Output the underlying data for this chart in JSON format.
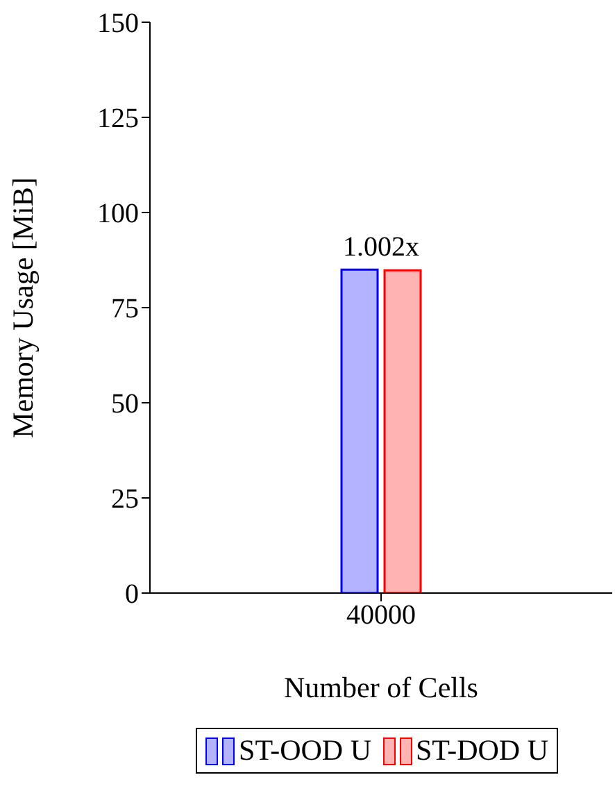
{
  "chart_data": {
    "type": "bar",
    "xlabel": "Number of Cells",
    "ylabel": "Memory Usage [MiB]",
    "categories": [
      "40000"
    ],
    "series": [
      {
        "name": "ST-OOD U",
        "color": "#b3b3ff",
        "values": [
          85.0
        ]
      },
      {
        "name": "ST-DOD U",
        "color": "#ffb3b3",
        "values": [
          84.8
        ]
      }
    ],
    "ylim": [
      0,
      150
    ],
    "yticks": [
      0,
      25,
      50,
      75,
      100,
      125,
      150
    ],
    "grid": false,
    "legend": "bottom",
    "annotations": [
      {
        "text": "1.002x",
        "x": "40000",
        "y": 85
      }
    ]
  }
}
